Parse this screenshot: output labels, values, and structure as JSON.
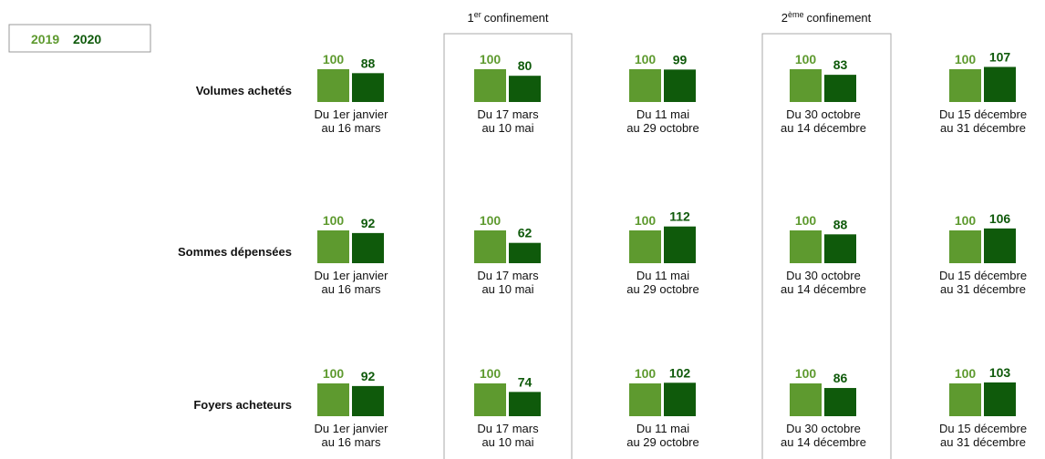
{
  "headers": [
    {
      "prefix": "1",
      "sup": "er",
      "label": "confinement"
    },
    {
      "prefix": "2",
      "sup": "ème",
      "label": "confinement"
    }
  ],
  "chart_data": [
    {
      "type": "bar",
      "title": "Volumes achetés",
      "categories": [
        [
          "Du 1er janvier",
          "au 16 mars"
        ],
        [
          "Du 17 mars",
          "au 10 mai"
        ],
        [
          "Du 11 mai",
          "au 29 octobre"
        ],
        [
          "Du 30 octobre",
          "au 14 décembre"
        ],
        [
          "Du 15 décembre",
          "au 31 décembre"
        ]
      ],
      "series": [
        {
          "name": "2019",
          "color": "#5e9a2f",
          "values": [
            100,
            100,
            100,
            100,
            100
          ]
        },
        {
          "name": "2020",
          "color": "#0f5a0b",
          "values": [
            88,
            80,
            99,
            83,
            107
          ]
        }
      ]
    },
    {
      "type": "bar",
      "title": "Sommes dépensées",
      "categories": [
        [
          "Du 1er janvier",
          "au 16 mars"
        ],
        [
          "Du 17 mars",
          "au 10 mai"
        ],
        [
          "Du 11 mai",
          "au 29 octobre"
        ],
        [
          "Du 30 octobre",
          "au 14 décembre"
        ],
        [
          "Du 15 décembre",
          "au 31 décembre"
        ]
      ],
      "series": [
        {
          "name": "2019",
          "color": "#5e9a2f",
          "values": [
            100,
            100,
            100,
            100,
            100
          ]
        },
        {
          "name": "2020",
          "color": "#0f5a0b",
          "values": [
            92,
            62,
            112,
            88,
            106
          ]
        }
      ]
    },
    {
      "type": "bar",
      "title": "Foyers acheteurs",
      "categories": [
        [
          "Du 1er janvier",
          "au 16 mars"
        ],
        [
          "Du 17 mars",
          "au 10 mai"
        ],
        [
          "Du 11 mai",
          "au 29 octobre"
        ],
        [
          "Du 30 octobre",
          "au 14 décembre"
        ],
        [
          "Du 15 décembre",
          "au 31 décembre"
        ]
      ],
      "series": [
        {
          "name": "2019",
          "color": "#5e9a2f",
          "values": [
            100,
            100,
            100,
            100,
            100
          ]
        },
        {
          "name": "2020",
          "color": "#0f5a0b",
          "values": [
            92,
            74,
            102,
            86,
            103
          ]
        }
      ]
    }
  ]
}
